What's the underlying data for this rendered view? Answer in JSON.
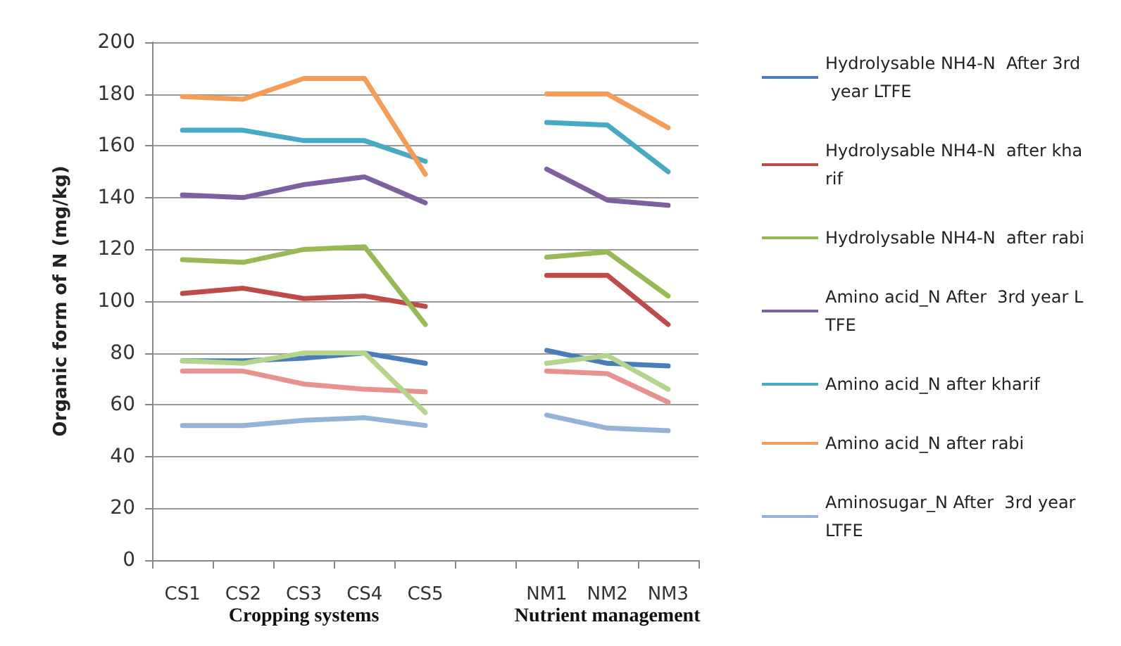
{
  "chart_data": {
    "type": "line",
    "ylabel": "Organic form of N (mg/kg)",
    "categories": [
      "CS1",
      "CS2",
      "CS3",
      "CS4",
      "CS5",
      null,
      "NM1",
      "NM2",
      "NM3"
    ],
    "ylim": [
      0,
      200
    ],
    "yticks": [
      0,
      20,
      40,
      60,
      80,
      100,
      120,
      140,
      160,
      180,
      200
    ],
    "grid": "y",
    "legend": "right",
    "marker": "none",
    "line_style": "solid",
    "annotations": [
      "Cropping systems",
      "Nutrient management"
    ],
    "series": [
      {
        "name": "Hydrolysable NH4-N  After 3rd year LTFE",
        "color": "#4a7ebb",
        "values": [
          77,
          77,
          78,
          80,
          76,
          null,
          81,
          76,
          75
        ]
      },
      {
        "name": "Hydrolysable NH4-N  after kharif",
        "color": "#be4b48",
        "values": [
          103,
          105,
          101,
          102,
          98,
          null,
          110,
          110,
          91
        ]
      },
      {
        "name": "Hydrolysable NH4-N  after rabi",
        "color": "#98b954",
        "values": [
          116,
          115,
          120,
          121,
          91,
          null,
          117,
          119,
          102
        ]
      },
      {
        "name": "Amino acid_N After  3rd year LTFE",
        "color": "#7d60a0",
        "values": [
          141,
          140,
          145,
          148,
          138,
          null,
          151,
          139,
          137
        ]
      },
      {
        "name": "Amino acid_N after kharif",
        "color": "#46aac5",
        "values": [
          166,
          166,
          162,
          162,
          154,
          null,
          169,
          168,
          150
        ]
      },
      {
        "name": "Amino acid_N after rabi",
        "color": "#f59d56",
        "values": [
          179,
          178,
          186,
          186,
          149,
          null,
          180,
          180,
          167
        ]
      },
      {
        "name": "Aminosugar_N After  3rd year LTFE",
        "color": "#95b3d7",
        "values": [
          52,
          52,
          54,
          55,
          52,
          null,
          56,
          51,
          50
        ]
      },
      {
        "color": "#e6938f",
        "values": [
          73,
          73,
          68,
          66,
          65,
          null,
          73,
          72,
          61
        ]
      },
      {
        "color": "#b3d58c",
        "values": [
          77,
          76,
          80,
          80,
          57,
          null,
          76,
          79,
          66
        ]
      }
    ]
  }
}
